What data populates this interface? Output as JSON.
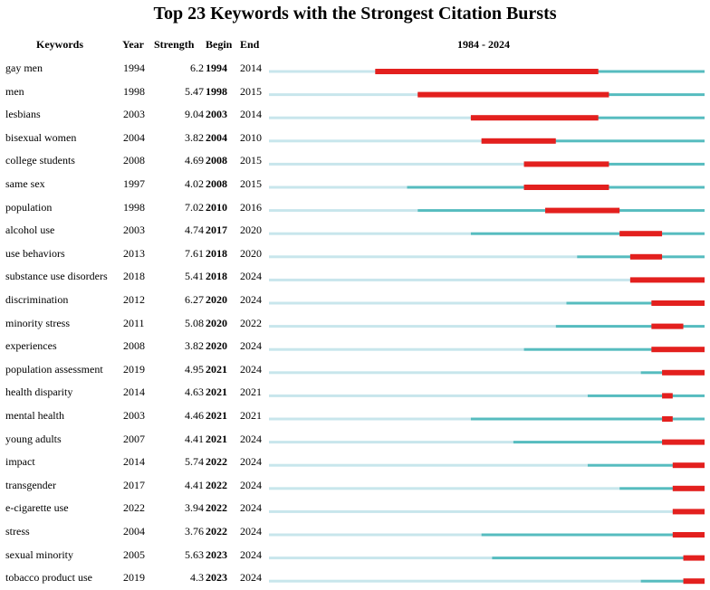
{
  "chart_data": {
    "type": "bar",
    "title": "Top 23 Keywords with the Strongest Citation Bursts",
    "headers": {
      "keyword": "Keywords",
      "year": "Year",
      "strength": "Strength",
      "begin": "Begin",
      "end": "End",
      "range_label": "1984 - 2024"
    },
    "timeline": {
      "start": 1984,
      "end": 2024
    },
    "colors": {
      "before": "#c8e6ec",
      "active": "#56bcbf",
      "burst": "#e3201e"
    },
    "rows": [
      {
        "keyword": "gay men",
        "year": "1994",
        "strength": "6.2",
        "begin": "1994",
        "end": "2014"
      },
      {
        "keyword": "men",
        "year": "1998",
        "strength": "5.47",
        "begin": "1998",
        "end": "2015"
      },
      {
        "keyword": "lesbians",
        "year": "2003",
        "strength": "9.04",
        "begin": "2003",
        "end": "2014"
      },
      {
        "keyword": "bisexual women",
        "year": "2004",
        "strength": "3.82",
        "begin": "2004",
        "end": "2010"
      },
      {
        "keyword": "college students",
        "year": "2008",
        "strength": "4.69",
        "begin": "2008",
        "end": "2015"
      },
      {
        "keyword": "same sex",
        "year": "1997",
        "strength": "4.02",
        "begin": "2008",
        "end": "2015"
      },
      {
        "keyword": "population",
        "year": "1998",
        "strength": "7.02",
        "begin": "2010",
        "end": "2016"
      },
      {
        "keyword": "alcohol use",
        "year": "2003",
        "strength": "4.74",
        "begin": "2017",
        "end": "2020"
      },
      {
        "keyword": "use behaviors",
        "year": "2013",
        "strength": "7.61",
        "begin": "2018",
        "end": "2020"
      },
      {
        "keyword": "substance use disorders",
        "year": "2018",
        "strength": "5.41",
        "begin": "2018",
        "end": "2024"
      },
      {
        "keyword": "discrimination",
        "year": "2012",
        "strength": "6.27",
        "begin": "2020",
        "end": "2024"
      },
      {
        "keyword": "minority stress",
        "year": "2011",
        "strength": "5.08",
        "begin": "2020",
        "end": "2022"
      },
      {
        "keyword": "experiences",
        "year": "2008",
        "strength": "3.82",
        "begin": "2020",
        "end": "2024"
      },
      {
        "keyword": "population assessment",
        "year": "2019",
        "strength": "4.95",
        "begin": "2021",
        "end": "2024"
      },
      {
        "keyword": "health disparity",
        "year": "2014",
        "strength": "4.63",
        "begin": "2021",
        "end": "2021"
      },
      {
        "keyword": "mental health",
        "year": "2003",
        "strength": "4.46",
        "begin": "2021",
        "end": "2021"
      },
      {
        "keyword": "young adults",
        "year": "2007",
        "strength": "4.41",
        "begin": "2021",
        "end": "2024"
      },
      {
        "keyword": "impact",
        "year": "2014",
        "strength": "5.74",
        "begin": "2022",
        "end": "2024"
      },
      {
        "keyword": "transgender",
        "year": "2017",
        "strength": "4.41",
        "begin": "2022",
        "end": "2024"
      },
      {
        "keyword": "e-cigarette use",
        "year": "2022",
        "strength": "3.94",
        "begin": "2022",
        "end": "2024"
      },
      {
        "keyword": "stress",
        "year": "2004",
        "strength": "3.76",
        "begin": "2022",
        "end": "2024"
      },
      {
        "keyword": "sexual minority",
        "year": "2005",
        "strength": "5.63",
        "begin": "2023",
        "end": "2024"
      },
      {
        "keyword": "tobacco product use",
        "year": "2019",
        "strength": "4.3",
        "begin": "2023",
        "end": "2024"
      }
    ]
  }
}
